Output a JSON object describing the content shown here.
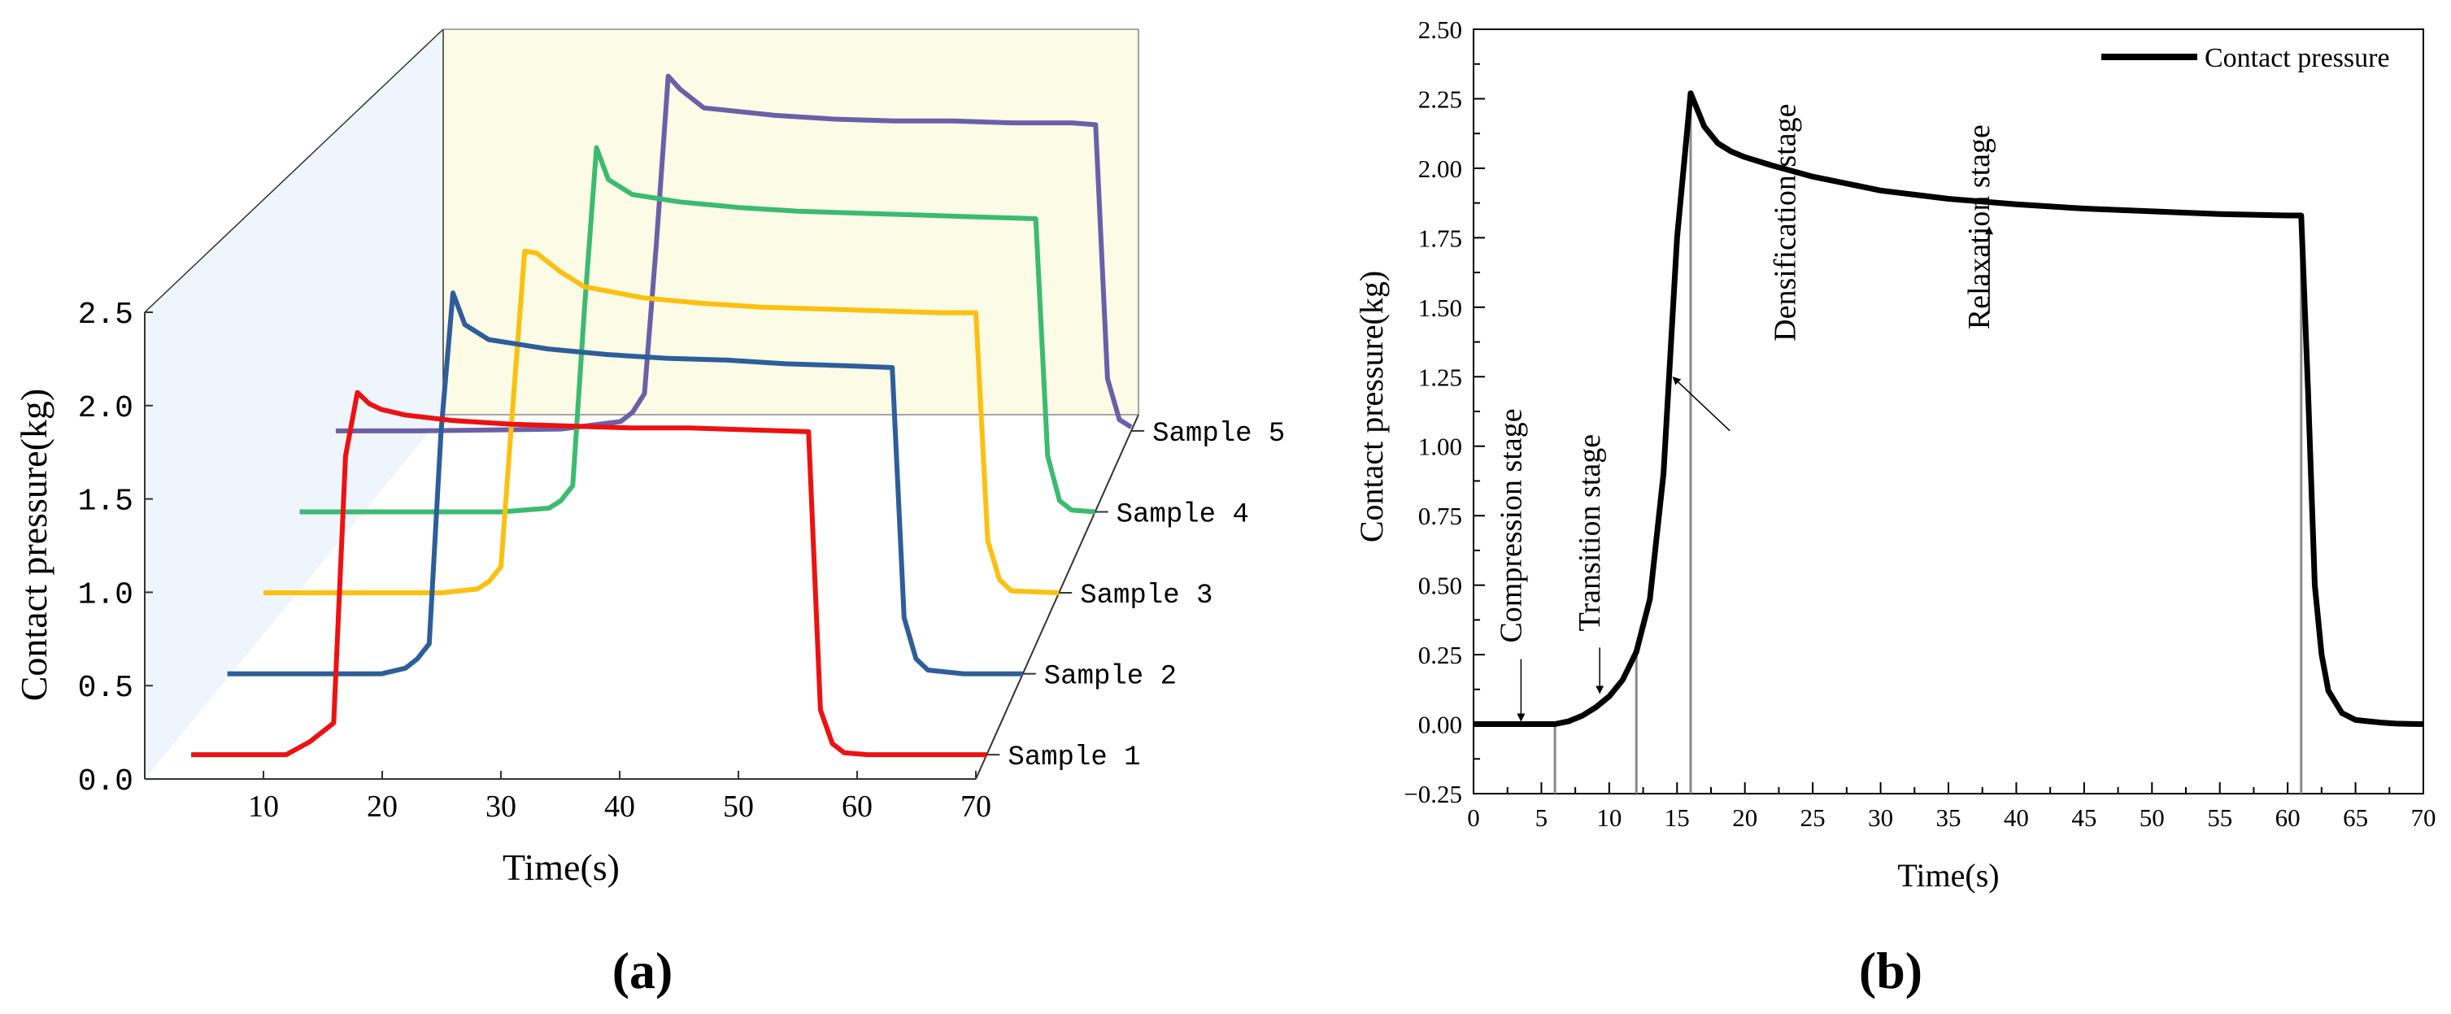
{
  "panels": {
    "a_label": "(a)",
    "b_label": "(b)"
  },
  "chart_data": [
    {
      "type": "line",
      "panel": "a",
      "projection": "3d-waterfall",
      "xlabel": "Time(s)",
      "ylabel": "Contact pressure(kg)",
      "xlim": [
        0,
        70
      ],
      "ylim": [
        0,
        2.5
      ],
      "xticks": [
        10,
        20,
        30,
        40,
        50,
        60,
        70
      ],
      "yticks": [
        0.0,
        0.5,
        1.0,
        1.5,
        2.0,
        2.5
      ],
      "ytick_labels": [
        "0.0",
        "0.5",
        "1.0",
        "1.5",
        "2.0",
        "2.5"
      ],
      "wall_colors": {
        "back": "#fbfbe6",
        "side": "#eef5fc"
      },
      "series": [
        {
          "name": "Sample 1",
          "color": "#ee1111",
          "x": [
            3,
            11,
            13,
            15,
            16,
            17,
            18,
            19,
            21,
            25,
            30,
            35,
            40,
            45,
            50,
            55,
            56,
            57,
            58,
            60,
            65,
            70
          ],
          "y": [
            0,
            0,
            0.07,
            0.17,
            1.6,
            1.94,
            1.88,
            1.85,
            1.82,
            1.79,
            1.77,
            1.76,
            1.75,
            1.75,
            1.74,
            1.73,
            0.24,
            0.06,
            0.01,
            0,
            0,
            0
          ]
        },
        {
          "name": "Sample 2",
          "color": "#2e5e9a",
          "x": [
            3,
            10,
            16,
            18,
            19,
            20,
            21,
            22,
            23,
            25,
            30,
            35,
            40,
            45,
            50,
            55,
            59,
            60,
            61,
            62,
            65,
            70
          ],
          "y": [
            0,
            0,
            0,
            0.03,
            0.08,
            0.16,
            1.3,
            2.04,
            1.87,
            1.79,
            1.74,
            1.71,
            1.69,
            1.68,
            1.66,
            1.65,
            1.64,
            0.3,
            0.08,
            0.02,
            0,
            0
          ]
        },
        {
          "name": "Sample 3",
          "color": "#fcc010",
          "x": [
            3,
            10,
            18,
            21,
            22,
            23,
            24,
            25,
            26,
            28,
            30,
            35,
            40,
            45,
            50,
            55,
            60,
            63,
            64,
            65,
            66,
            70
          ],
          "y": [
            0,
            0,
            0,
            0.02,
            0.06,
            0.14,
            1.0,
            1.83,
            1.82,
            1.72,
            1.64,
            1.58,
            1.55,
            1.53,
            1.52,
            1.51,
            1.5,
            1.5,
            0.28,
            0.07,
            0.01,
            0
          ]
        },
        {
          "name": "Sample 4",
          "color": "#3cbb70",
          "x": [
            3,
            10,
            20,
            24,
            25,
            26,
            27,
            28,
            29,
            31,
            35,
            40,
            45,
            50,
            55,
            60,
            65,
            66,
            67,
            68,
            70
          ],
          "y": [
            0,
            0,
            0,
            0.02,
            0.06,
            0.14,
            1.1,
            1.95,
            1.78,
            1.7,
            1.66,
            1.63,
            1.61,
            1.6,
            1.59,
            1.58,
            1.57,
            0.3,
            0.06,
            0.01,
            0
          ]
        },
        {
          "name": "Sample 5",
          "color": "#6b60a8",
          "x": [
            3,
            10,
            22,
            27,
            28,
            29,
            30,
            31,
            32,
            34,
            40,
            45,
            50,
            55,
            60,
            65,
            67,
            68,
            69,
            70
          ],
          "y": [
            0,
            0,
            0.01,
            0.05,
            0.1,
            0.2,
            1.0,
            1.9,
            1.83,
            1.73,
            1.69,
            1.67,
            1.66,
            1.66,
            1.65,
            1.65,
            1.64,
            0.28,
            0.06,
            0.02
          ]
        }
      ]
    },
    {
      "type": "line",
      "panel": "b",
      "xlabel": "Time(s)",
      "ylabel": "Contact pressure(kg)",
      "xlim": [
        0,
        70
      ],
      "ylim": [
        -0.25,
        2.5
      ],
      "xticks": [
        0,
        5,
        10,
        15,
        20,
        25,
        30,
        35,
        40,
        45,
        50,
        55,
        60,
        65,
        70
      ],
      "yticks": [
        -0.25,
        0,
        0.25,
        0.5,
        0.75,
        1.0,
        1.25,
        1.5,
        1.75,
        2.0,
        2.25,
        2.5
      ],
      "ytick_labels": [
        "−0.25",
        "0.00",
        "0.25",
        "0.50",
        "0.75",
        "1.00",
        "1.25",
        "1.50",
        "1.75",
        "2.00",
        "2.25",
        "2.50"
      ],
      "legend": "top-right",
      "stage_lines_x": [
        6,
        12,
        16,
        61
      ],
      "series": [
        {
          "name": "Contact pressure",
          "color": "#000000",
          "x": [
            0,
            2,
            4,
            6,
            7,
            8,
            9,
            10,
            11,
            12,
            13,
            14,
            15,
            16,
            17,
            18,
            19,
            20,
            22,
            25,
            28,
            30,
            35,
            40,
            45,
            50,
            55,
            60,
            61,
            61.5,
            62,
            62.5,
            63,
            64,
            65,
            66,
            67,
            68,
            69,
            70
          ],
          "y": [
            0,
            0,
            0,
            0,
            0.01,
            0.03,
            0.06,
            0.1,
            0.16,
            0.26,
            0.45,
            0.9,
            1.75,
            2.27,
            2.15,
            2.09,
            2.06,
            2.04,
            2.01,
            1.97,
            1.94,
            1.92,
            1.89,
            1.87,
            1.855,
            1.845,
            1.835,
            1.83,
            1.83,
            1.2,
            0.5,
            0.25,
            0.12,
            0.04,
            0.015,
            0.01,
            0.005,
            0.002,
            0.001,
            0
          ]
        }
      ],
      "annotations": [
        {
          "text": "Compression stage",
          "x": 3.5,
          "y": 0
        },
        {
          "text": "Transition stage",
          "x": 9.3,
          "y": 0.1
        },
        {
          "text": "Densification  stage",
          "x": 14.7,
          "y": 1.26
        },
        {
          "text": "Relaxation stage",
          "x": 38,
          "y": 1.8
        }
      ]
    }
  ]
}
